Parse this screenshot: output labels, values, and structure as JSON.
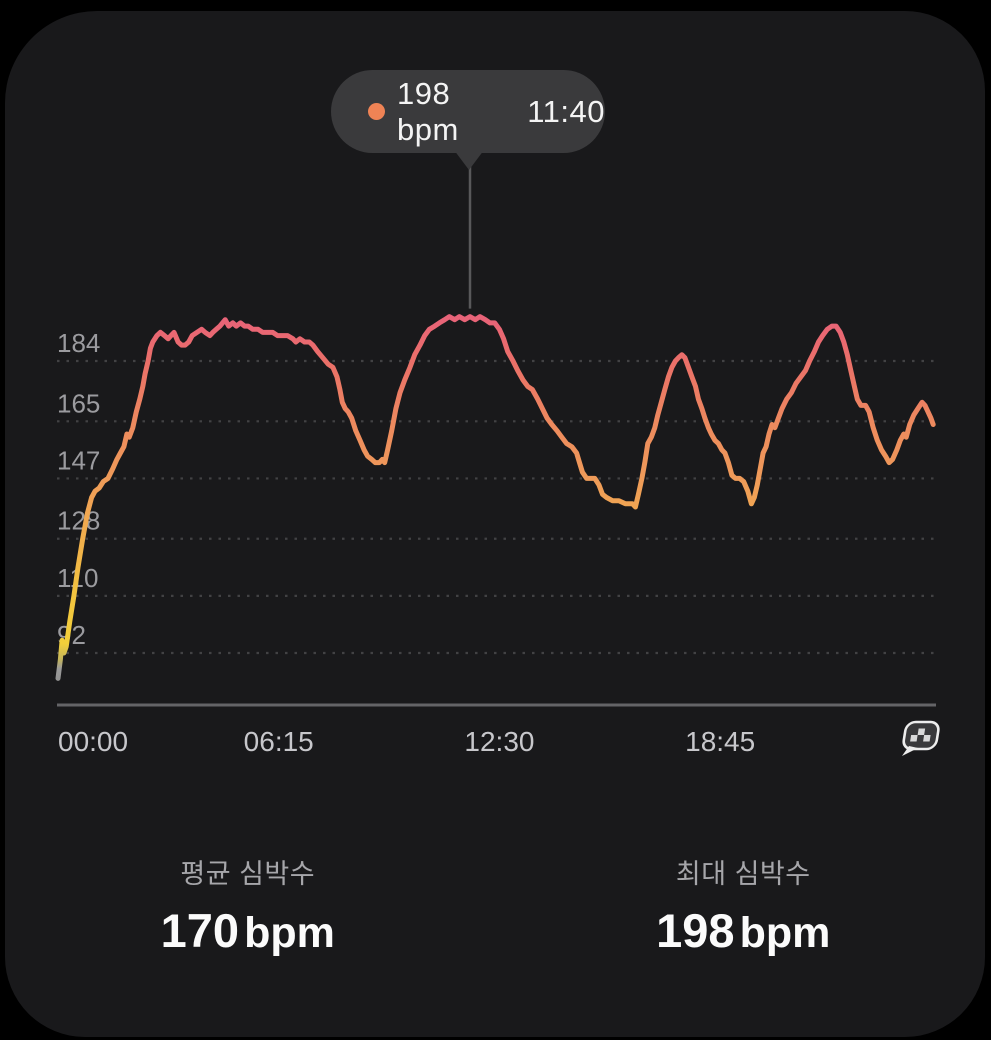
{
  "tooltip": {
    "value": "198 bpm",
    "time": "11:40",
    "dot_color": "#ef8355"
  },
  "stats": {
    "avg": {
      "label": "평균 심박수",
      "value": "170",
      "unit": "bpm"
    },
    "max": {
      "label": "최대 심박수",
      "value": "198",
      "unit": "bpm"
    }
  },
  "icons": {
    "end_marker": "checkered-flag"
  },
  "colors": {
    "background": "#000000",
    "panel": "#19191b",
    "grid_dots": "#424244",
    "y_tick_text": "#9b9b9f",
    "x_tick_text": "#c7c7cb",
    "axis_line": "#646467",
    "tooltip_bg": "#3a3a3c",
    "tooltip_text": "#f4f4f4",
    "connector": "#58585a",
    "stat_label": "#a6a6aa",
    "stat_value": "#fbfbfb"
  },
  "chart_data": {
    "type": "line",
    "ylabel": "bpm",
    "xlabel": "elapsed time (hh:mm)",
    "grid": "dotted-horizontal",
    "legend": "none",
    "ylim": [
      82,
      200
    ],
    "xlim_minutes": [
      0,
      1487
    ],
    "y_ticks": [
      184,
      165,
      147,
      128,
      110,
      92
    ],
    "x_ticks": [
      {
        "label": "00:00",
        "minutes": 0
      },
      {
        "label": "06:15",
        "minutes": 375
      },
      {
        "label": "12:30",
        "minutes": 750
      },
      {
        "label": "18:45",
        "minutes": 1125
      }
    ],
    "marker": {
      "minutes": 700,
      "bpm": 198,
      "time_label": "11:40"
    },
    "gradient": [
      {
        "bpm": 200,
        "color": "#e8617b"
      },
      {
        "bpm": 184,
        "color": "#ea6f69"
      },
      {
        "bpm": 164,
        "color": "#ed8a5e"
      },
      {
        "bpm": 147,
        "color": "#ef9b59"
      },
      {
        "bpm": 127,
        "color": "#f1b04b"
      },
      {
        "bpm": 109,
        "color": "#f3c53e"
      },
      {
        "bpm": 95,
        "color": "#f1cf3a"
      },
      {
        "bpm": 90,
        "color": "#c4b55c"
      },
      {
        "bpm": 87,
        "color": "#9a9a9a"
      },
      {
        "bpm": 82,
        "color": "#8f8f8f"
      }
    ],
    "points": [
      [
        0,
        84
      ],
      [
        4,
        90
      ],
      [
        7,
        96
      ],
      [
        10,
        92
      ],
      [
        14,
        94
      ],
      [
        20,
        102
      ],
      [
        27,
        110
      ],
      [
        34,
        119
      ],
      [
        42,
        128
      ],
      [
        50,
        136
      ],
      [
        57,
        141
      ],
      [
        63,
        143
      ],
      [
        70,
        144
      ],
      [
        77,
        146
      ],
      [
        85,
        147
      ],
      [
        93,
        150
      ],
      [
        100,
        153
      ],
      [
        106,
        155
      ],
      [
        112,
        157
      ],
      [
        117,
        161
      ],
      [
        121,
        160
      ],
      [
        127,
        163
      ],
      [
        133,
        168
      ],
      [
        139,
        172
      ],
      [
        144,
        176
      ],
      [
        148,
        180
      ],
      [
        153,
        184
      ],
      [
        157,
        188
      ],
      [
        161,
        190
      ],
      [
        168,
        192
      ],
      [
        174,
        193
      ],
      [
        181,
        192
      ],
      [
        187,
        191
      ],
      [
        192,
        192
      ],
      [
        197,
        193
      ],
      [
        204,
        190
      ],
      [
        210,
        189
      ],
      [
        216,
        189
      ],
      [
        222,
        190
      ],
      [
        228,
        192
      ],
      [
        236,
        193
      ],
      [
        244,
        194
      ],
      [
        250,
        193
      ],
      [
        258,
        192
      ],
      [
        263,
        193
      ],
      [
        269,
        194
      ],
      [
        275,
        195
      ],
      [
        284,
        197
      ],
      [
        290,
        195
      ],
      [
        297,
        196
      ],
      [
        303,
        195
      ],
      [
        310,
        196
      ],
      [
        317,
        195
      ],
      [
        323,
        195
      ],
      [
        331,
        194
      ],
      [
        340,
        194
      ],
      [
        348,
        193
      ],
      [
        357,
        193
      ],
      [
        365,
        193
      ],
      [
        373,
        192
      ],
      [
        382,
        192
      ],
      [
        390,
        192
      ],
      [
        399,
        191
      ],
      [
        404,
        190
      ],
      [
        411,
        191
      ],
      [
        419,
        190
      ],
      [
        427,
        190
      ],
      [
        433,
        189
      ],
      [
        441,
        187
      ],
      [
        450,
        185
      ],
      [
        459,
        183
      ],
      [
        467,
        182
      ],
      [
        474,
        179
      ],
      [
        479,
        175
      ],
      [
        483,
        171
      ],
      [
        488,
        169
      ],
      [
        493,
        168
      ],
      [
        499,
        166
      ],
      [
        506,
        162
      ],
      [
        513,
        159
      ],
      [
        520,
        156
      ],
      [
        526,
        154
      ],
      [
        533,
        153
      ],
      [
        539,
        152
      ],
      [
        546,
        152
      ],
      [
        551,
        153
      ],
      [
        555,
        152
      ],
      [
        560,
        156
      ],
      [
        567,
        162
      ],
      [
        574,
        169
      ],
      [
        581,
        174
      ],
      [
        589,
        178
      ],
      [
        598,
        182
      ],
      [
        606,
        186
      ],
      [
        615,
        189
      ],
      [
        623,
        192
      ],
      [
        631,
        194
      ],
      [
        640,
        195
      ],
      [
        648,
        196
      ],
      [
        657,
        197
      ],
      [
        665,
        198
      ],
      [
        674,
        197
      ],
      [
        682,
        198
      ],
      [
        691,
        197
      ],
      [
        700,
        198
      ],
      [
        709,
        197
      ],
      [
        717,
        198
      ],
      [
        726,
        197
      ],
      [
        734,
        196
      ],
      [
        742,
        196
      ],
      [
        750,
        194
      ],
      [
        757,
        191
      ],
      [
        764,
        187
      ],
      [
        773,
        184
      ],
      [
        781,
        181
      ],
      [
        790,
        178
      ],
      [
        798,
        176
      ],
      [
        806,
        175
      ],
      [
        815,
        172
      ],
      [
        823,
        169
      ],
      [
        831,
        166
      ],
      [
        839,
        164
      ],
      [
        848,
        162
      ],
      [
        856,
        160
      ],
      [
        864,
        158
      ],
      [
        873,
        157
      ],
      [
        881,
        155
      ],
      [
        886,
        152
      ],
      [
        891,
        149
      ],
      [
        898,
        147
      ],
      [
        905,
        147
      ],
      [
        912,
        147
      ],
      [
        919,
        145
      ],
      [
        925,
        142
      ],
      [
        932,
        141
      ],
      [
        942,
        140
      ],
      [
        953,
        140
      ],
      [
        964,
        139
      ],
      [
        976,
        139
      ],
      [
        981,
        138
      ],
      [
        986,
        142
      ],
      [
        992,
        147
      ],
      [
        997,
        152
      ],
      [
        1002,
        158
      ],
      [
        1008,
        160
      ],
      [
        1014,
        163
      ],
      [
        1019,
        167
      ],
      [
        1025,
        171
      ],
      [
        1031,
        175
      ],
      [
        1037,
        179
      ],
      [
        1043,
        182
      ],
      [
        1049,
        184
      ],
      [
        1054,
        185
      ],
      [
        1060,
        186
      ],
      [
        1065,
        185
      ],
      [
        1071,
        182
      ],
      [
        1077,
        179
      ],
      [
        1083,
        176
      ],
      [
        1088,
        172
      ],
      [
        1094,
        169
      ],
      [
        1099,
        166
      ],
      [
        1105,
        163
      ],
      [
        1110,
        161
      ],
      [
        1116,
        159
      ],
      [
        1122,
        158
      ],
      [
        1128,
        156
      ],
      [
        1133,
        155
      ],
      [
        1139,
        152
      ],
      [
        1145,
        148
      ],
      [
        1151,
        147
      ],
      [
        1158,
        147
      ],
      [
        1165,
        146
      ],
      [
        1172,
        143
      ],
      [
        1178,
        139
      ],
      [
        1183,
        141
      ],
      [
        1188,
        145
      ],
      [
        1193,
        150
      ],
      [
        1198,
        155
      ],
      [
        1203,
        157
      ],
      [
        1208,
        161
      ],
      [
        1213,
        164
      ],
      [
        1218,
        163
      ],
      [
        1224,
        166
      ],
      [
        1230,
        169
      ],
      [
        1238,
        172
      ],
      [
        1246,
        174
      ],
      [
        1254,
        177
      ],
      [
        1262,
        179
      ],
      [
        1270,
        181
      ],
      [
        1277,
        184
      ],
      [
        1285,
        187
      ],
      [
        1292,
        190
      ],
      [
        1299,
        192
      ],
      [
        1307,
        194
      ],
      [
        1315,
        195
      ],
      [
        1322,
        195
      ],
      [
        1329,
        193
      ],
      [
        1335,
        190
      ],
      [
        1341,
        186
      ],
      [
        1347,
        181
      ],
      [
        1353,
        176
      ],
      [
        1358,
        172
      ],
      [
        1364,
        170
      ],
      [
        1372,
        170
      ],
      [
        1378,
        168
      ],
      [
        1385,
        163
      ],
      [
        1392,
        159
      ],
      [
        1399,
        156
      ],
      [
        1406,
        154
      ],
      [
        1412,
        152
      ],
      [
        1418,
        153
      ],
      [
        1425,
        156
      ],
      [
        1431,
        159
      ],
      [
        1437,
        161
      ],
      [
        1441,
        160
      ],
      [
        1447,
        164
      ],
      [
        1454,
        167
      ],
      [
        1461,
        169
      ],
      [
        1468,
        171
      ],
      [
        1473,
        170
      ],
      [
        1478,
        168
      ],
      [
        1483,
        166
      ],
      [
        1487,
        164
      ]
    ]
  }
}
